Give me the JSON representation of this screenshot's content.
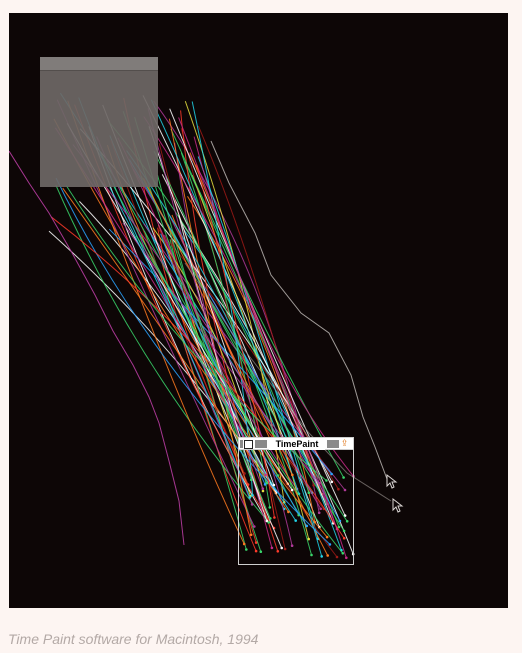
{
  "screenshot": {
    "window_title": "TimePaint",
    "background_color": "#0d0606",
    "trace_palette": [
      "#ff3a2a",
      "#e6e040",
      "#21d4e8",
      "#ff7a20",
      "#2aa3ff",
      "#b03a9a",
      "#39d66b",
      "#ffffff",
      "#c92a8a",
      "#9d1a16"
    ],
    "cursor_icon": "arrow-cursor-icon",
    "zoom_icon": "zoom-box-icon"
  },
  "caption": "Time Paint software for Macintosh, 1994"
}
